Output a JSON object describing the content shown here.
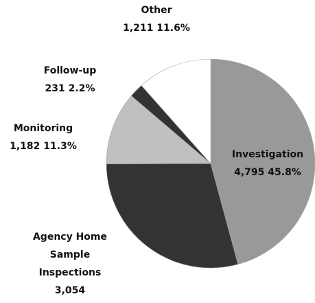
{
  "chart_data": {
    "type": "pie",
    "categories": [
      "Investigation",
      "Agency Home Sample Inspections",
      "Monitoring",
      "Follow-up",
      "Other"
    ],
    "values": [
      4795,
      3054,
      1182,
      231,
      1211
    ],
    "value_labels": [
      "4,795",
      "3,054",
      "1,182",
      "231",
      "1,211"
    ],
    "percent_values": [
      45.8,
      29.2,
      11.3,
      2.2,
      11.6
    ],
    "percent_labels": [
      "45.8%",
      "29.2%",
      "11.3%",
      "2.2%",
      "11.6%"
    ],
    "colors": [
      "#999999",
      "#333333",
      "#c0c0c0",
      "#333333",
      "#ffffff"
    ]
  }
}
